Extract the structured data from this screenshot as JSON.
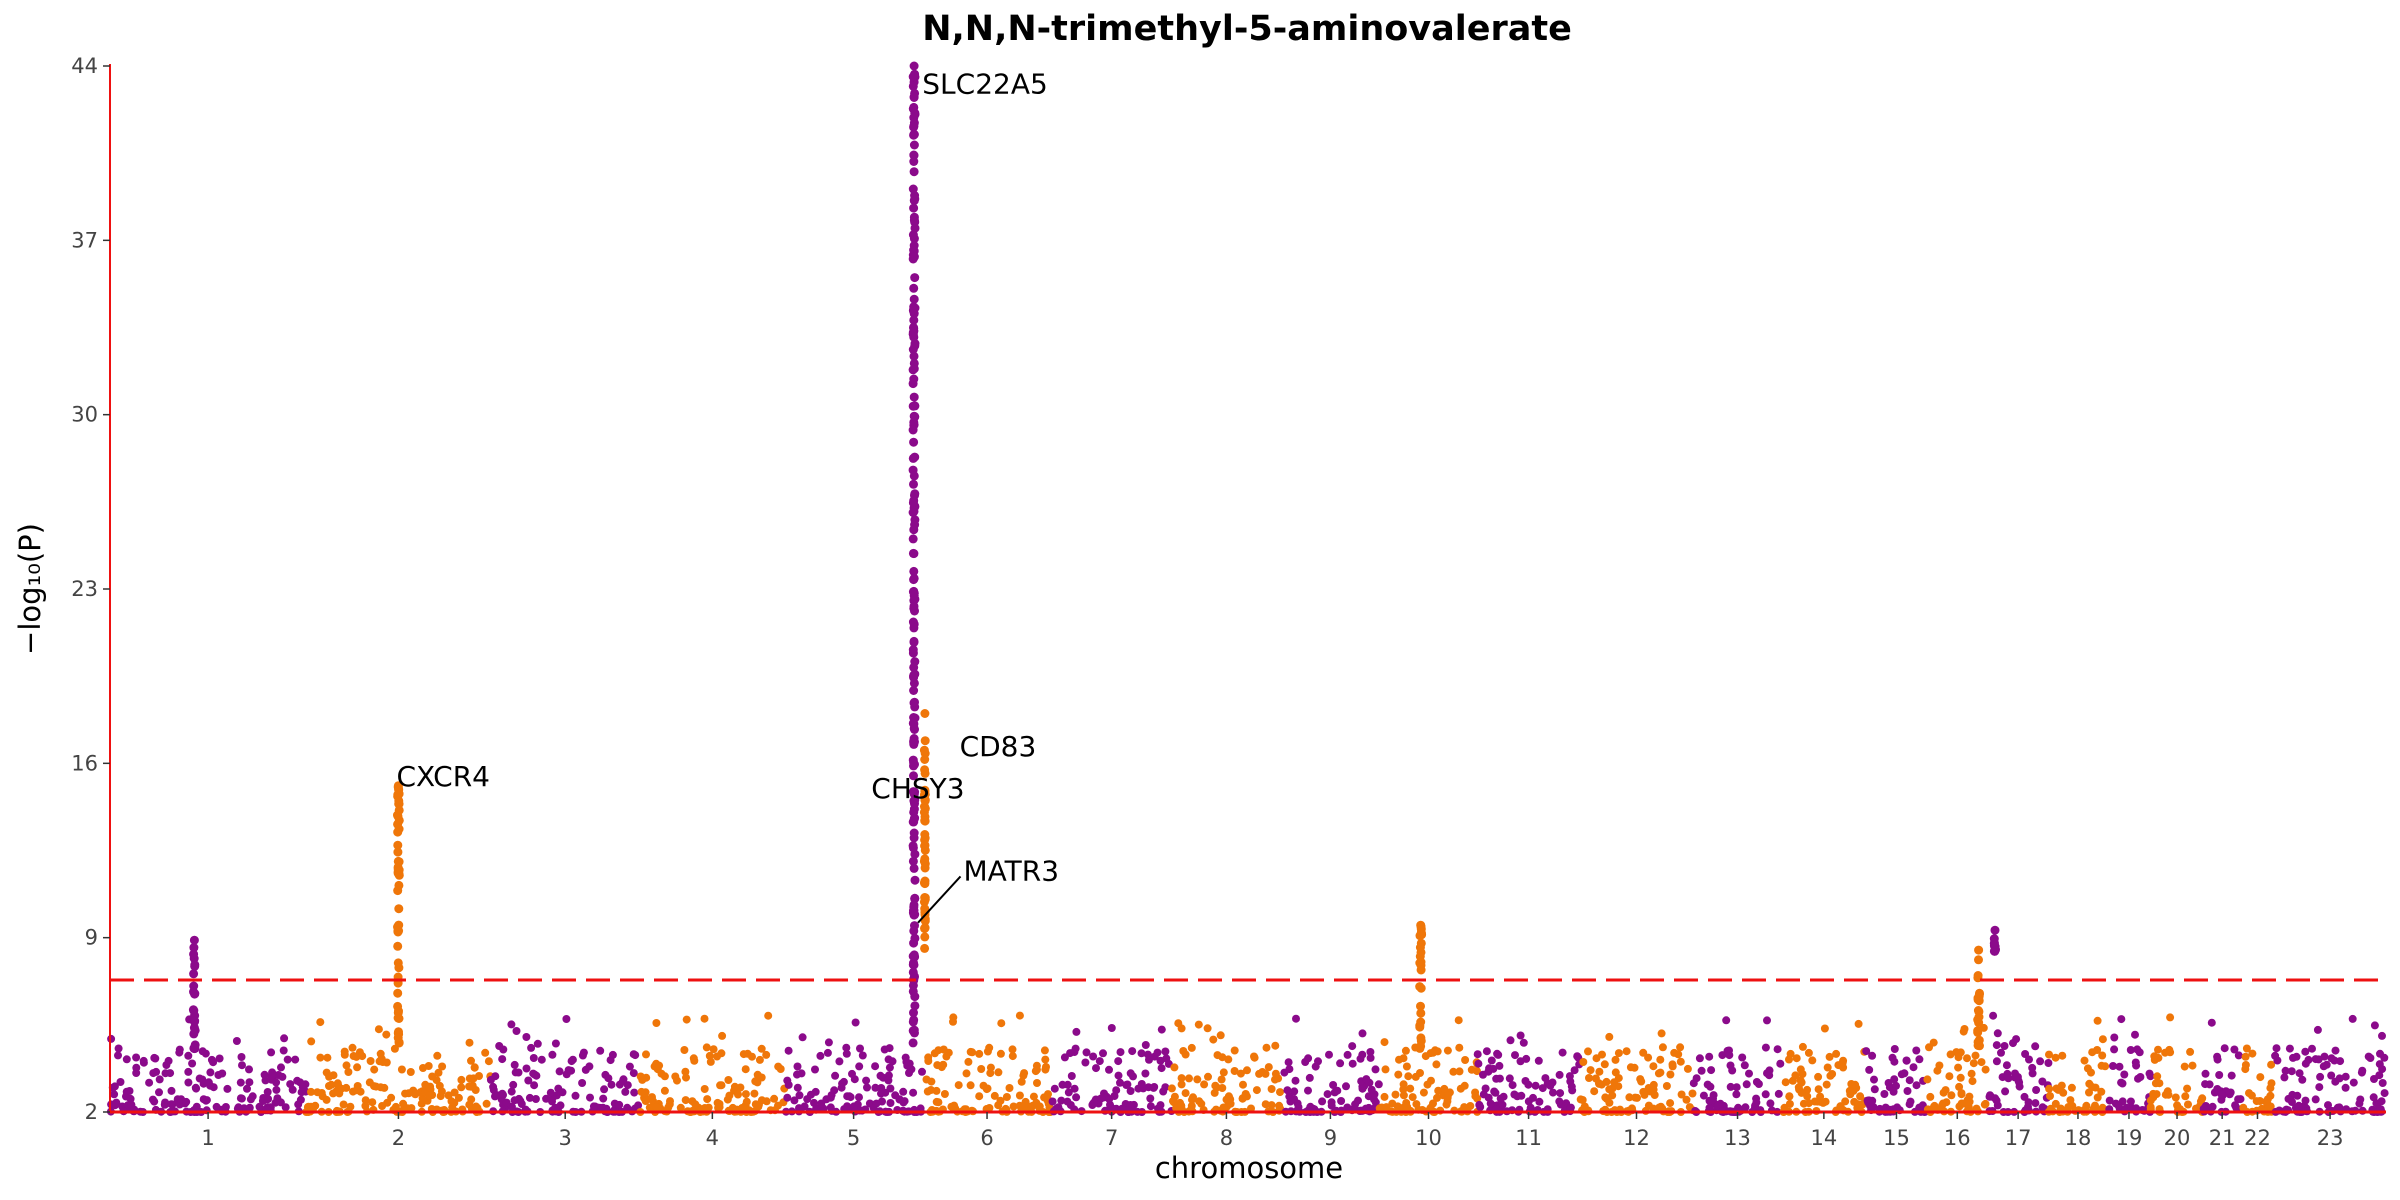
{
  "chart_data": {
    "type": "scatter",
    "subtype": "manhattan",
    "title": "N,N,N-trimethyl-5-aminovalerate",
    "xlabel": "chromosome",
    "ylabel": "−log₁₀(P)",
    "ylim": [
      2,
      44
    ],
    "y_ticks": [
      2,
      9,
      16,
      23,
      30,
      37,
      44
    ],
    "significance_threshold": 7.3,
    "threshold_color": "#ee1111",
    "axis_color": "#ee1111",
    "series_colors": [
      "#8b0a8b",
      "#ef7609"
    ],
    "chromosomes": [
      {
        "label": "1",
        "x_start": 0,
        "x_end": 1.0
      },
      {
        "label": "2",
        "x_start": 1.0,
        "x_end": 1.94
      },
      {
        "label": "3",
        "x_start": 1.94,
        "x_end": 2.7
      },
      {
        "label": "4",
        "x_start": 2.7,
        "x_end": 3.44
      },
      {
        "label": "5",
        "x_start": 3.44,
        "x_end": 4.14
      },
      {
        "label": "6",
        "x_start": 4.14,
        "x_end": 4.8
      },
      {
        "label": "7",
        "x_start": 4.8,
        "x_end": 5.41
      },
      {
        "label": "8",
        "x_start": 5.41,
        "x_end": 5.97
      },
      {
        "label": "9",
        "x_start": 5.97,
        "x_end": 6.47
      },
      {
        "label": "10",
        "x_start": 6.47,
        "x_end": 6.97
      },
      {
        "label": "11",
        "x_start": 6.97,
        "x_end": 7.49
      },
      {
        "label": "12",
        "x_start": 7.49,
        "x_end": 8.07
      },
      {
        "label": "13",
        "x_start": 8.07,
        "x_end": 8.52
      },
      {
        "label": "14",
        "x_start": 8.52,
        "x_end": 8.95
      },
      {
        "label": "15",
        "x_start": 8.95,
        "x_end": 9.26
      },
      {
        "label": "16",
        "x_start": 9.26,
        "x_end": 9.57
      },
      {
        "label": "17",
        "x_start": 9.57,
        "x_end": 9.88
      },
      {
        "label": "18",
        "x_start": 9.88,
        "x_end": 10.18
      },
      {
        "label": "19",
        "x_start": 10.18,
        "x_end": 10.4
      },
      {
        "label": "20",
        "x_start": 10.4,
        "x_end": 10.67
      },
      {
        "label": "21",
        "x_start": 10.67,
        "x_end": 10.86
      },
      {
        "label": "22",
        "x_start": 10.86,
        "x_end": 11.03
      },
      {
        "label": "23",
        "x_start": 11.03,
        "x_end": 11.6
      }
    ],
    "peaks": [
      {
        "chrom": "1",
        "pos": 0.43,
        "max_y": 8.9,
        "dense_min": 4.5,
        "width": 0.01
      },
      {
        "chrom": "2",
        "pos": 0.5,
        "max_y": 15.1,
        "dense_min": 4.5,
        "width": 0.01
      },
      {
        "chrom": "5",
        "pos": 0.94,
        "max_y": 44.0,
        "dense_min": 4.5,
        "width": 0.01
      },
      {
        "chrom": "6",
        "pos": 0.02,
        "max_y": 18.0,
        "dense_min": 8.5,
        "width": 0.005
      },
      {
        "chrom": "10",
        "pos": 0.42,
        "max_y": 9.5,
        "dense_min": 4.5,
        "width": 0.01
      },
      {
        "chrom": "16",
        "pos": 0.85,
        "max_y": 8.5,
        "dense_min": 4.5,
        "width": 0.01
      },
      {
        "chrom": "17",
        "pos": 0.12,
        "max_y": 9.3,
        "dense_min": 8.3,
        "width": 0.01
      }
    ],
    "annotations": [
      {
        "text": "SLC22A5",
        "x": 4.14,
        "y": 43.3
      },
      {
        "text": "CXCR4",
        "x": 1.46,
        "y": 15.5
      },
      {
        "text": "CHSY3",
        "x": 3.88,
        "y": 15.0
      },
      {
        "text": "CD83",
        "x": 4.33,
        "y": 16.7
      },
      {
        "text": "MATR3",
        "x": 4.35,
        "y": 11.7
      }
    ]
  }
}
